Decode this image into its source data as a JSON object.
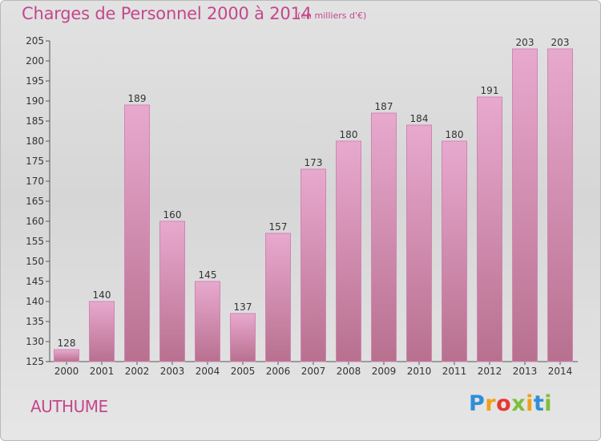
{
  "header": {
    "title": "Charges de Personnel 2000 à 2014",
    "unit_note": "(en milliers d'€)"
  },
  "footer": {
    "town": "AUTHUME",
    "logo_letters": [
      "P",
      "r",
      "o",
      "x",
      "i",
      "t",
      "i"
    ]
  },
  "colors": {
    "title": "#c4478d",
    "bar_light": "#e8a9cf",
    "bar_dark": "#b8708f",
    "bar_edge": "#cf86b2",
    "background": "#dcdcdc"
  },
  "chart_data": {
    "type": "bar",
    "title": "Charges de Personnel 2000 à 2014",
    "subtitle": "(en milliers d'€)",
    "categories": [
      "2000",
      "2001",
      "2002",
      "2003",
      "2004",
      "2005",
      "2006",
      "2007",
      "2008",
      "2009",
      "2010",
      "2011",
      "2012",
      "2013",
      "2014"
    ],
    "values": [
      128,
      140,
      189,
      160,
      145,
      137,
      157,
      173,
      180,
      187,
      184,
      180,
      191,
      203,
      203
    ],
    "value_labels": [
      "128",
      "140",
      "189",
      "160",
      "145",
      "137",
      "157",
      "173",
      "180",
      "187",
      "184",
      "180",
      "191",
      "203",
      "203"
    ],
    "xlabel": "",
    "ylabel": "",
    "ylim": [
      125,
      205
    ],
    "yticks": [
      125,
      130,
      135,
      140,
      145,
      150,
      155,
      160,
      165,
      170,
      175,
      180,
      185,
      190,
      195,
      200,
      205
    ],
    "grid": false,
    "legend": "none"
  }
}
